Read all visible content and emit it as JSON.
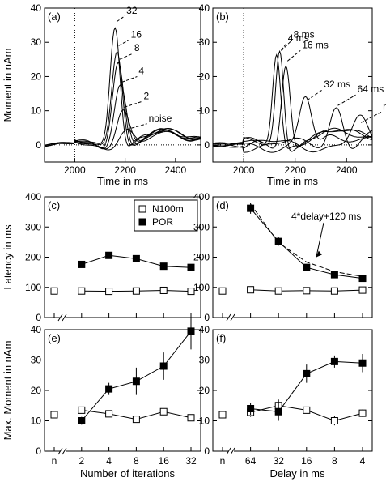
{
  "chart_data": [
    {
      "id": "a",
      "type": "line",
      "panel_label": "(a)",
      "xlabel": "Time in ms",
      "ylabel": "Moment in nAm",
      "xlim": [
        1880,
        2500
      ],
      "ylim": [
        -5,
        40
      ],
      "xticks": [
        2000,
        2200,
        2400
      ],
      "yticks": [
        0,
        10,
        20,
        30,
        40
      ],
      "vline": 2000,
      "hline": 0,
      "curve_labels": [
        "32",
        "16",
        "8",
        "4",
        "2",
        "noise"
      ],
      "series": [
        {
          "name": "32",
          "peak": 36.5,
          "peak_t": 2160,
          "width": 28
        },
        {
          "name": "16",
          "peak": 29.5,
          "peak_t": 2168,
          "width": 30
        },
        {
          "name": "8",
          "peak": 25.5,
          "peak_t": 2172,
          "width": 32
        },
        {
          "name": "4",
          "peak": 18.8,
          "peak_t": 2180,
          "width": 34
        },
        {
          "name": "2",
          "peak": 11.5,
          "peak_t": 2190,
          "width": 36
        },
        {
          "name": "noise",
          "peak": 5,
          "peak_t": 2200,
          "width": 40
        }
      ]
    },
    {
      "id": "b",
      "type": "line",
      "panel_label": "(b)",
      "xlabel": "Time in ms",
      "ylabel": "",
      "xlim": [
        1880,
        2500
      ],
      "ylim": [
        -5,
        40
      ],
      "xticks": [
        2000,
        2200,
        2400
      ],
      "yticks": [
        0,
        10,
        20,
        30,
        40
      ],
      "vline": 2000,
      "hline": 0,
      "curve_labels": [
        "4 ms",
        "8 ms",
        "16 ms",
        "32 ms",
        "64 ms",
        "noise"
      ],
      "series": [
        {
          "name": "4 ms",
          "peak": 27.0,
          "peak_t": 2128,
          "width": 22
        },
        {
          "name": "8 ms",
          "peak": 28.0,
          "peak_t": 2140,
          "width": 22
        },
        {
          "name": "16 ms",
          "peak": 25.0,
          "peak_t": 2164,
          "width": 24
        },
        {
          "name": "32 ms",
          "peak": 13.5,
          "peak_t": 2240,
          "width": 32
        },
        {
          "name": "64 ms",
          "peak": 12.0,
          "peak_t": 2360,
          "width": 36
        },
        {
          "name": "noise",
          "peak": 7,
          "peak_t": 2450,
          "width": 40
        }
      ]
    },
    {
      "id": "c",
      "type": "line",
      "panel_label": "(c)",
      "ylabel": "Latency in ms",
      "ylim": [
        0,
        400
      ],
      "yticks": [
        0,
        100,
        200,
        300,
        400
      ],
      "categories": [
        "n",
        "2",
        "4",
        "8",
        "16",
        "32"
      ],
      "legend": {
        "position": "top-right",
        "entries": [
          "N100m",
          "POR"
        ]
      },
      "series": [
        {
          "name": "N100m",
          "marker": "open-square",
          "values": [
            88,
            88,
            87,
            88,
            90,
            87
          ],
          "errors": [
            0,
            0,
            0,
            0,
            0,
            0
          ]
        },
        {
          "name": "POR",
          "marker": "filled-square",
          "values": [
            null,
            176,
            206,
            195,
            170,
            166
          ],
          "errors": [
            0,
            0,
            0,
            0,
            0,
            0
          ]
        }
      ]
    },
    {
      "id": "d",
      "type": "line",
      "panel_label": "(d)",
      "ylabel": "",
      "ylim": [
        0,
        400
      ],
      "yticks": [
        0,
        100,
        200,
        300,
        400
      ],
      "categories": [
        "n",
        "64",
        "32",
        "16",
        "8",
        "4"
      ],
      "annotation": "4*delay+120 ms",
      "model_line": [
        376,
        248,
        184,
        152,
        136
      ],
      "series": [
        {
          "name": "N100m",
          "marker": "open-square",
          "values": [
            88,
            92,
            88,
            89,
            88,
            91
          ],
          "errors": [
            0,
            0,
            0,
            0,
            0,
            0
          ]
        },
        {
          "name": "POR",
          "marker": "filled-square",
          "values": [
            null,
            362,
            252,
            166,
            142,
            130
          ],
          "errors": [
            0,
            18,
            14,
            6,
            5,
            4
          ]
        }
      ]
    },
    {
      "id": "e",
      "type": "line",
      "panel_label": "(e)",
      "xlabel": "Number of iterations",
      "ylabel": "Max. Moment in nAm",
      "ylim": [
        0,
        40
      ],
      "yticks": [
        0,
        10,
        20,
        30,
        40
      ],
      "categories": [
        "n",
        "2",
        "4",
        "8",
        "16",
        "32"
      ],
      "series": [
        {
          "name": "N100m",
          "marker": "open-square",
          "values": [
            12,
            13.5,
            12.3,
            10.5,
            13,
            11
          ],
          "errors": [
            0,
            0,
            0.8,
            0.8,
            1,
            1
          ]
        },
        {
          "name": "POR",
          "marker": "filled-square",
          "values": [
            null,
            10,
            20.5,
            23,
            28,
            39.5
          ],
          "errors": [
            0,
            1.3,
            2,
            4.5,
            4.5,
            6
          ]
        }
      ]
    },
    {
      "id": "f",
      "type": "line",
      "panel_label": "(f)",
      "xlabel": "Delay in ms",
      "ylabel": "",
      "ylim": [
        0,
        40
      ],
      "yticks": [
        0,
        10,
        20,
        30,
        40
      ],
      "categories": [
        "n",
        "64",
        "32",
        "16",
        "8",
        "4"
      ],
      "series": [
        {
          "name": "N100m",
          "marker": "open-square",
          "values": [
            12,
            12.8,
            15,
            13.5,
            10,
            12.5
          ],
          "errors": [
            0,
            1.5,
            2,
            1,
            1.5,
            1.2
          ]
        },
        {
          "name": "POR",
          "marker": "filled-square",
          "values": [
            null,
            14,
            13,
            25.5,
            29.5,
            29
          ],
          "errors": [
            0,
            2,
            3,
            3,
            2,
            3
          ]
        }
      ]
    }
  ]
}
